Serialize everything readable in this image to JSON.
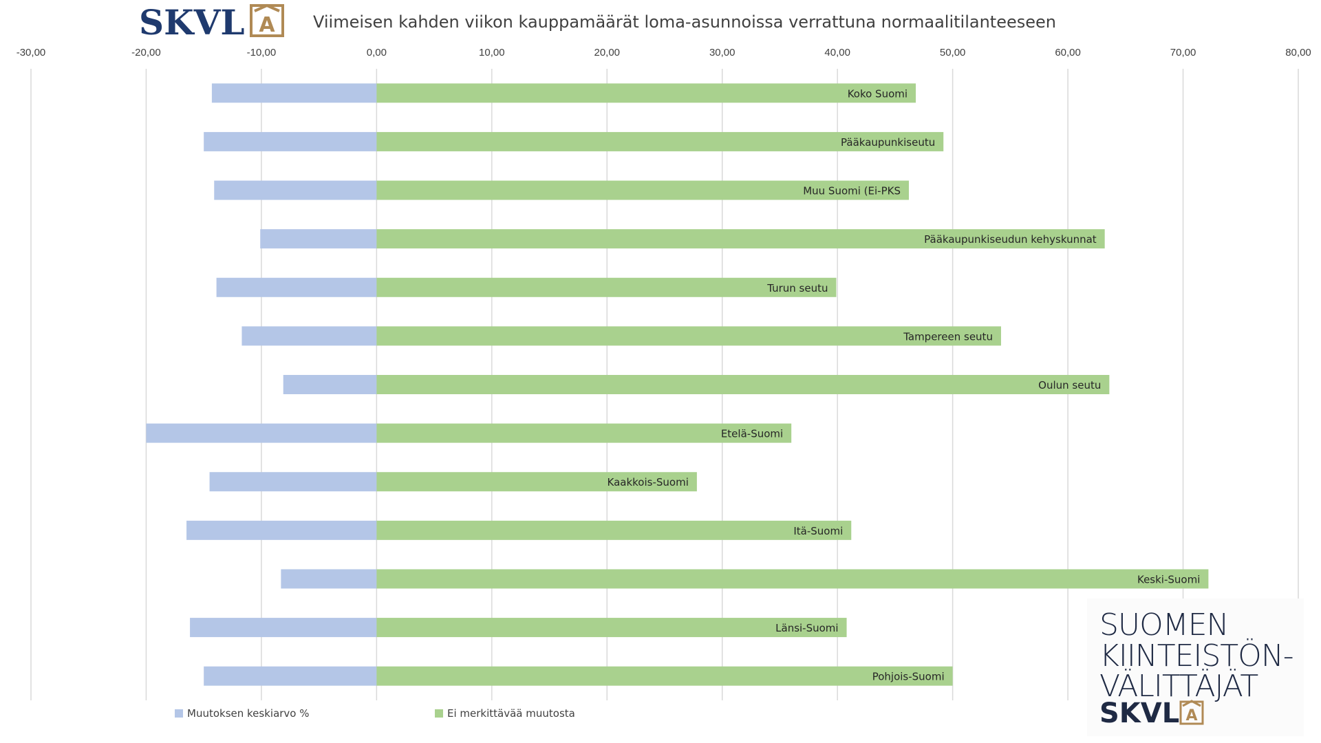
{
  "logo": {
    "top_text": "SKVL",
    "top_mark": "A",
    "brand_lines": [
      "SUOMEN",
      "KIINTEISTÖN-",
      "VÄLITTÄJÄT"
    ],
    "brand_skvl": "SKVL",
    "brand_mark": "A"
  },
  "colors": {
    "navy": "#1f3a6e",
    "gold": "#b08a55",
    "series_blue": "#b4c6e7",
    "series_green": "#a9d18e",
    "grid": "#d9d9d9"
  },
  "chart_data": {
    "type": "bar",
    "orientation": "horizontal",
    "stacked": true,
    "title": "Viimeisen kahden viikon kauppamäärät loma-asunnoissa verrattuna normaalitilanteeseen",
    "xlim": [
      -30,
      80
    ],
    "x_ticks": [
      "-30,00",
      "-20,00",
      "-10,00",
      "0,00",
      "10,00",
      "20,00",
      "30,00",
      "40,00",
      "50,00",
      "60,00",
      "70,00",
      "80,00"
    ],
    "x_tick_values": [
      -30,
      -20,
      -10,
      0,
      10,
      20,
      30,
      40,
      50,
      60,
      70,
      80
    ],
    "categories": [
      "Koko Suomi",
      "Pääkaupunkiseutu",
      "Muu Suomi (Ei-PKS",
      "Pääkaupunkiseudun kehyskunnat",
      "Turun seutu",
      "Tampereen seutu",
      "Oulun seutu",
      "Etelä-Suomi",
      "Kaakkois-Suomi",
      "Itä-Suomi",
      "Keski-Suomi",
      "Länsi-Suomi",
      "Pohjois-Suomi"
    ],
    "series": [
      {
        "name": "Muutoksen keskiarvo %",
        "color": "#b4c6e7",
        "values": [
          -14.3,
          -15.0,
          -14.1,
          -10.1,
          -13.9,
          -11.7,
          -8.1,
          -20.0,
          -14.5,
          -16.5,
          -8.3,
          -16.2,
          -15.0
        ]
      },
      {
        "name": "Ei merkittävää muutosta",
        "color": "#a9d18e",
        "values": [
          46.8,
          49.2,
          46.2,
          63.2,
          39.9,
          54.2,
          63.6,
          36.0,
          27.8,
          41.2,
          72.2,
          40.8,
          50.0
        ]
      }
    ],
    "legend_position": "bottom-left",
    "grid": true
  }
}
